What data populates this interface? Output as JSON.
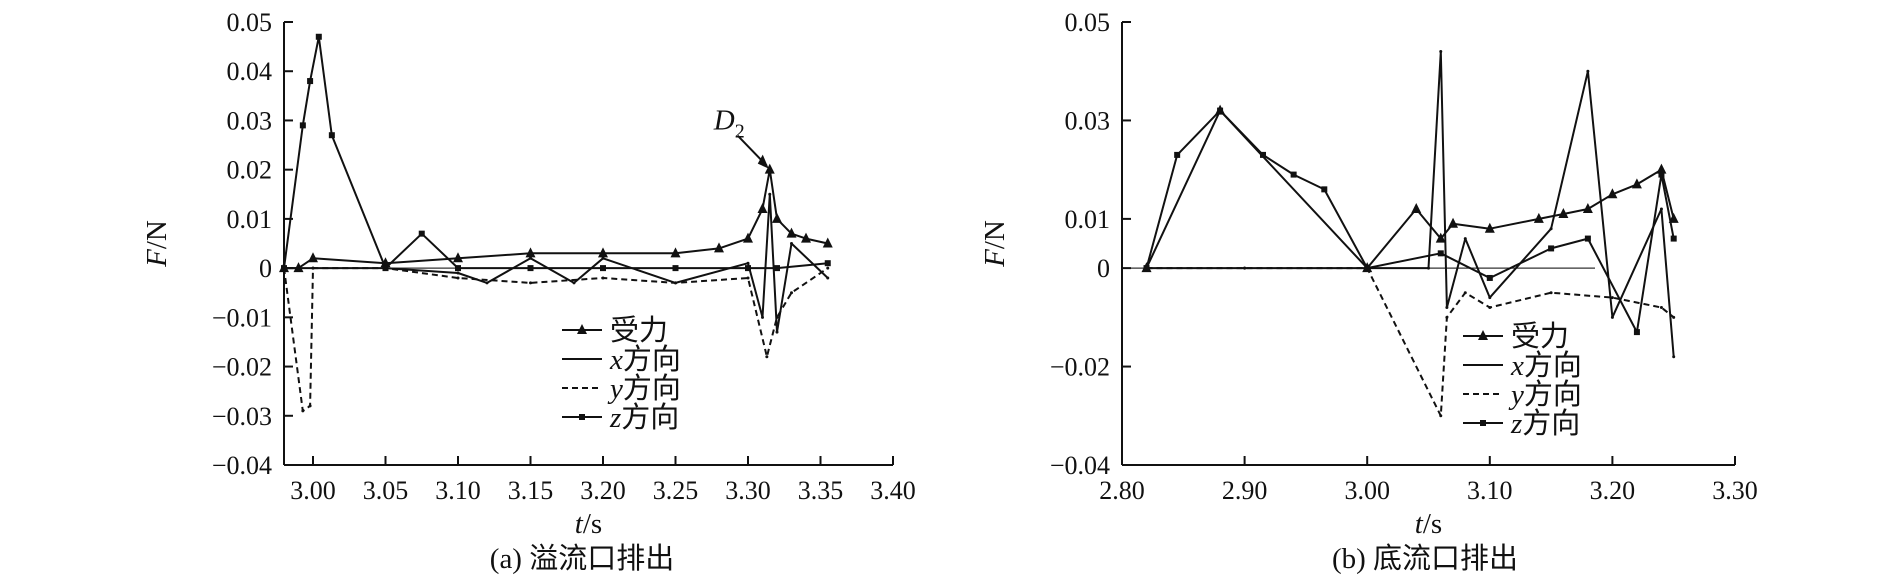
{
  "chart_data": [
    {
      "panel": "a",
      "type": "line",
      "caption": "(a) 溢流口排出",
      "xlabel": {
        "var": "t",
        "unit": "/s"
      },
      "ylabel": {
        "var": "F",
        "unit": "/N"
      },
      "xlim": [
        2.98,
        3.4
      ],
      "ylim": [
        -0.04,
        0.05
      ],
      "xticks": [
        3.0,
        3.05,
        3.1,
        3.15,
        3.2,
        3.25,
        3.3,
        3.35,
        3.4
      ],
      "xtick_labels": [
        "3.00",
        "3.05",
        "3.10",
        "3.15",
        "3.20",
        "3.25",
        "3.30",
        "3.35",
        "3.40"
      ],
      "yticks": [
        0.05,
        0.04,
        0.03,
        0.02,
        0.01,
        0,
        -0.01,
        -0.02,
        -0.03,
        -0.04
      ],
      "ytick_labels": [
        "0.05",
        "0.04",
        "0.03",
        "0.02",
        "0.01",
        "0",
        "−0.01",
        "−0.02",
        "−0.03",
        "−0.04"
      ],
      "grid": false,
      "legend_position": "lower-right",
      "annotation": {
        "text": "D",
        "sub": "2",
        "x": 3.315,
        "y": 0.02
      },
      "series": [
        {
          "name": "受力",
          "style": "solid-triangle",
          "x": [
            2.98,
            2.99,
            3.0,
            3.05,
            3.1,
            3.15,
            3.2,
            3.25,
            3.28,
            3.3,
            3.31,
            3.315,
            3.32,
            3.33,
            3.34,
            3.355
          ],
          "y": [
            0,
            0,
            0.002,
            0.001,
            0.002,
            0.003,
            0.003,
            0.003,
            0.004,
            0.006,
            0.012,
            0.02,
            0.01,
            0.007,
            0.006,
            0.005
          ]
        },
        {
          "name": "x方向",
          "style": "solid",
          "x": [
            2.98,
            3.0,
            3.05,
            3.1,
            3.12,
            3.15,
            3.18,
            3.2,
            3.25,
            3.3,
            3.31,
            3.315,
            3.32,
            3.33,
            3.355
          ],
          "y": [
            0,
            0,
            0,
            -0.001,
            -0.003,
            0.002,
            -0.003,
            0.002,
            -0.003,
            0.001,
            -0.01,
            0.015,
            -0.013,
            0.005,
            -0.002
          ]
        },
        {
          "name": "y方向",
          "style": "dashed",
          "x": [
            2.98,
            2.993,
            2.998,
            3.0,
            3.05,
            3.1,
            3.15,
            3.2,
            3.25,
            3.3,
            3.313,
            3.32,
            3.33,
            3.355
          ],
          "y": [
            0,
            -0.029,
            -0.028,
            0,
            0,
            -0.002,
            -0.003,
            -0.002,
            -0.003,
            -0.002,
            -0.018,
            -0.01,
            -0.005,
            0
          ]
        },
        {
          "name": "z方向",
          "style": "solid-square",
          "x": [
            2.98,
            2.993,
            2.998,
            3.004,
            3.013,
            3.05,
            3.075,
            3.1,
            3.15,
            3.2,
            3.25,
            3.3,
            3.32,
            3.355
          ],
          "y": [
            0,
            0.029,
            0.038,
            0.047,
            0.027,
            0,
            0.007,
            0,
            0,
            0,
            0,
            0,
            0,
            0.001
          ]
        }
      ]
    },
    {
      "panel": "b",
      "type": "line",
      "caption": "(b) 底流口排出",
      "xlabel": {
        "var": "t",
        "unit": "/s"
      },
      "ylabel": {
        "var": "F",
        "unit": "/N"
      },
      "xlim": [
        2.8,
        3.3
      ],
      "ylim": [
        -0.04,
        0.05
      ],
      "xticks": [
        2.8,
        2.9,
        3.0,
        3.1,
        3.2,
        3.3
      ],
      "xtick_labels": [
        "2.80",
        "2.90",
        "3.00",
        "3.10",
        "3.20",
        "3.30"
      ],
      "yticks": [
        0.05,
        0.03,
        0.01,
        0,
        -0.02,
        -0.04
      ],
      "ytick_labels": [
        "0.05",
        "0.03",
        "0.01",
        "0",
        "−0.02",
        "−0.04"
      ],
      "grid": false,
      "legend_position": "lower-right",
      "series": [
        {
          "name": "受力",
          "style": "solid-triangle",
          "x": [
            2.82,
            2.88,
            3.0,
            3.04,
            3.06,
            3.07,
            3.1,
            3.14,
            3.16,
            3.18,
            3.2,
            3.22,
            3.24,
            3.25
          ],
          "y": [
            0,
            0.032,
            0,
            0.012,
            0.006,
            0.009,
            0.008,
            0.01,
            0.011,
            0.012,
            0.015,
            0.017,
            0.02,
            0.01
          ]
        },
        {
          "name": "x方向",
          "style": "solid",
          "x": [
            2.82,
            2.9,
            3.0,
            3.05,
            3.06,
            3.065,
            3.08,
            3.1,
            3.15,
            3.18,
            3.2,
            3.24,
            3.25
          ],
          "y": [
            0,
            0,
            0,
            0,
            0.044,
            -0.008,
            0.006,
            -0.006,
            0.008,
            0.04,
            -0.01,
            0.012,
            -0.018
          ]
        },
        {
          "name": "y方向",
          "style": "dashed",
          "x": [
            2.82,
            2.9,
            3.0,
            3.06,
            3.065,
            3.08,
            3.1,
            3.15,
            3.2,
            3.24,
            3.25
          ],
          "y": [
            0,
            0,
            0,
            -0.03,
            -0.01,
            -0.005,
            -0.008,
            -0.005,
            -0.006,
            -0.008,
            -0.01
          ]
        },
        {
          "name": "z方向",
          "style": "solid-square",
          "x": [
            2.82,
            2.845,
            2.88,
            2.915,
            2.94,
            2.965,
            3.0,
            3.06,
            3.1,
            3.15,
            3.18,
            3.22,
            3.24,
            3.25
          ],
          "y": [
            0,
            0.023,
            0.032,
            0.023,
            0.019,
            0.016,
            0,
            0.003,
            -0.002,
            0.004,
            0.006,
            -0.013,
            0.019,
            0.006
          ]
        }
      ]
    }
  ]
}
